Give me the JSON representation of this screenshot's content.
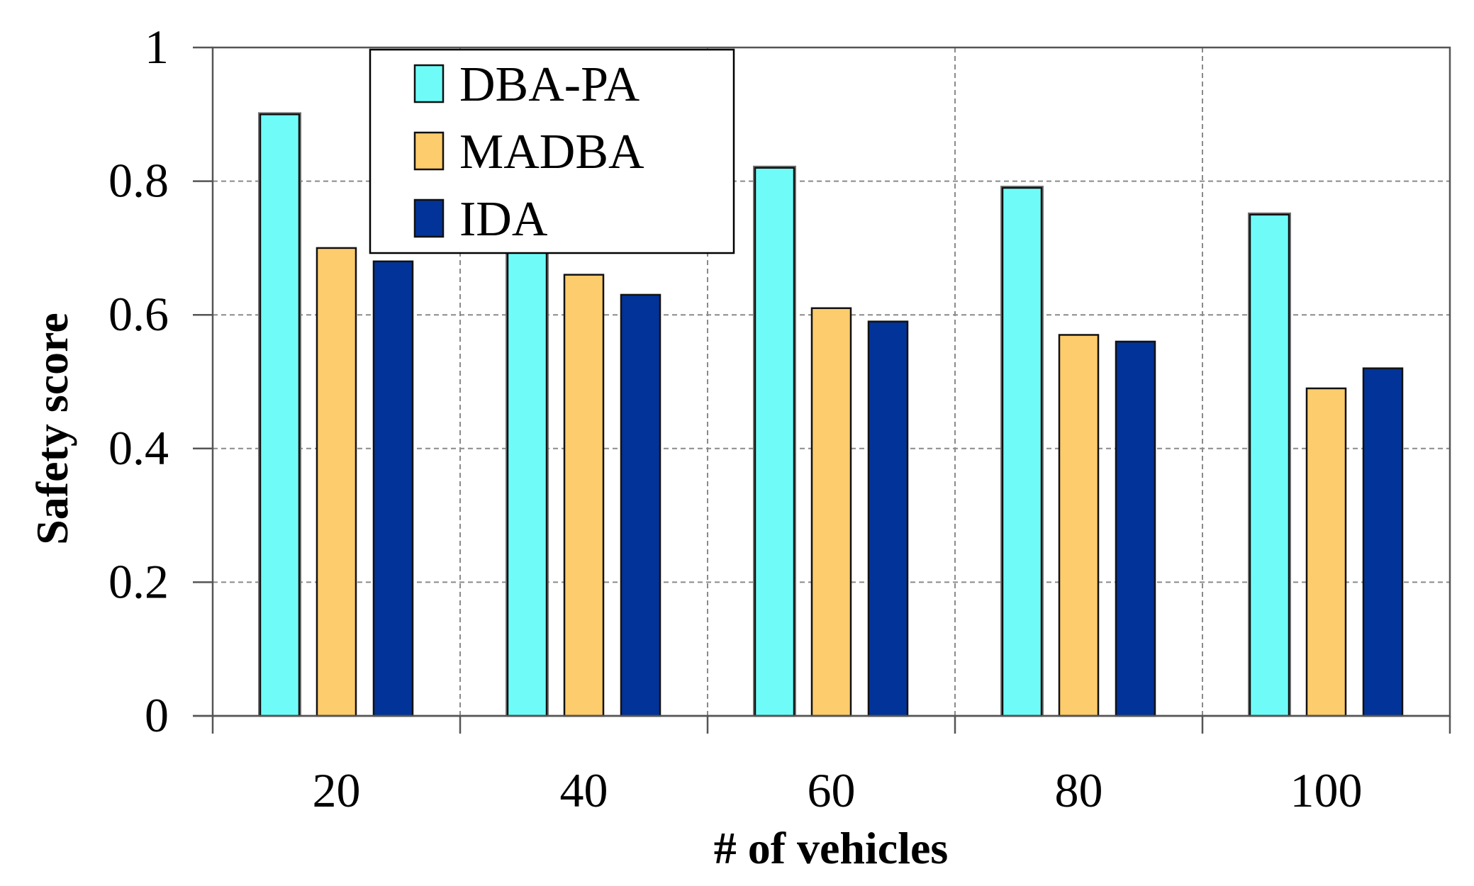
{
  "chart_data": {
    "type": "bar",
    "title": "",
    "xlabel": "# of vehicles",
    "ylabel": "Safety score",
    "categories": [
      "20",
      "40",
      "60",
      "80",
      "100"
    ],
    "ylim": [
      0,
      1
    ],
    "yticks": [
      "0",
      "0.2",
      "0.4",
      "0.6",
      "0.8",
      "1"
    ],
    "grid": true,
    "legend_position": "top-left",
    "series": [
      {
        "name": "DBA-PA",
        "color": "#6ffcf8",
        "values": [
          0.9,
          0.7,
          0.82,
          0.79,
          0.75
        ]
      },
      {
        "name": "MADBA",
        "color": "#fdcc6c",
        "values": [
          0.7,
          0.66,
          0.61,
          0.57,
          0.49
        ]
      },
      {
        "name": "IDA",
        "color": "#023398",
        "values": [
          0.68,
          0.63,
          0.59,
          0.56,
          0.52
        ]
      }
    ]
  }
}
